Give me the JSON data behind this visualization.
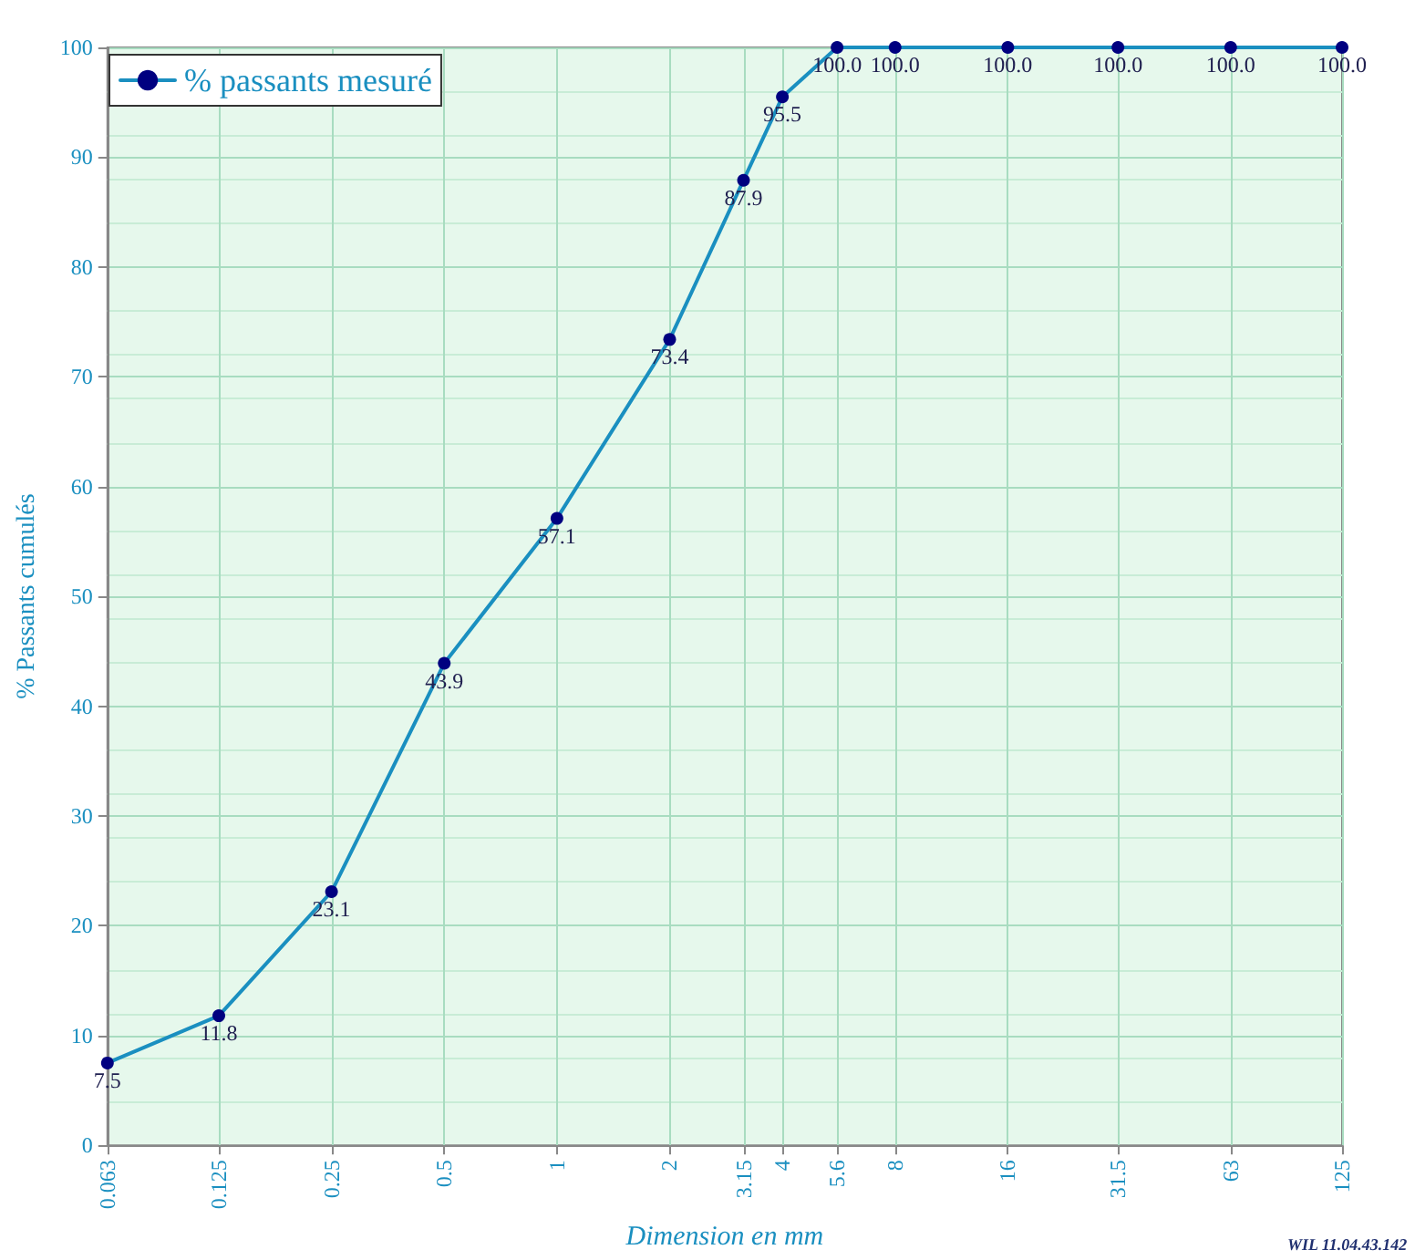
{
  "chart_data": {
    "type": "line",
    "xlabel": "Dimension en mm",
    "ylabel": "% Passants cumulés",
    "log": "x",
    "grid": true,
    "legend": "top left",
    "marker": "circle",
    "line_style": "solid",
    "xlim": [
      0.063,
      125
    ],
    "xticks": [
      0.063,
      0.125,
      0.25,
      0.5,
      1,
      2,
      3.15,
      4,
      5.6,
      8,
      16,
      31.5,
      63,
      125
    ],
    "ylim": [
      0,
      100
    ],
    "yticks": [
      0,
      10,
      20,
      30,
      40,
      50,
      60,
      70,
      80,
      90,
      100
    ],
    "annotations": [
      "WIL 11.04.43.142"
    ],
    "series": [
      {
        "name": "% passants mesuré",
        "color": "#1a8fc0",
        "x": [
          0.063,
          0.125,
          0.25,
          0.5,
          1,
          2,
          3.15,
          4,
          5.6,
          8,
          16,
          31.5,
          63,
          125
        ],
        "values": [
          7.5,
          11.8,
          23.1,
          43.9,
          57.1,
          73.4,
          87.9,
          95.5,
          100,
          100,
          100,
          100,
          100,
          100
        ],
        "value_labels": [
          "7.5",
          "11.8",
          "23.1",
          "43.9",
          "57.1",
          "73.4",
          "87.9",
          "95.5",
          "100.0",
          "100.0",
          "100.0",
          "100.0",
          "100.0",
          "100.0"
        ]
      }
    ]
  }
}
